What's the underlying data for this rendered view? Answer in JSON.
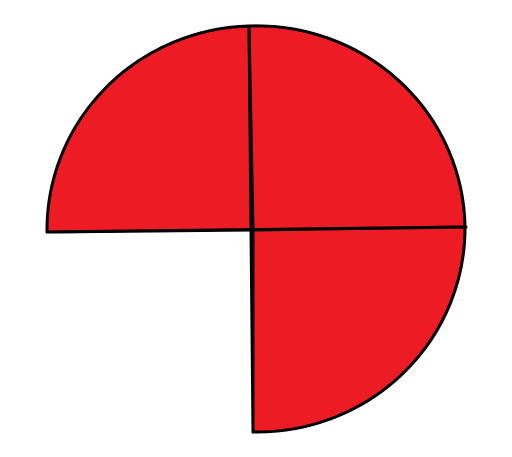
{
  "figure": {
    "description_shape": "circle divided into four equal quarters by two perpendicular lines, three quarters shaded",
    "total_parts": 4,
    "shaded_parts": 3,
    "unshaded_quadrant": "bottom-left",
    "fill_color": "#ED1C24",
    "stroke_color": "#000000",
    "background_color": "#FFFFFF"
  }
}
